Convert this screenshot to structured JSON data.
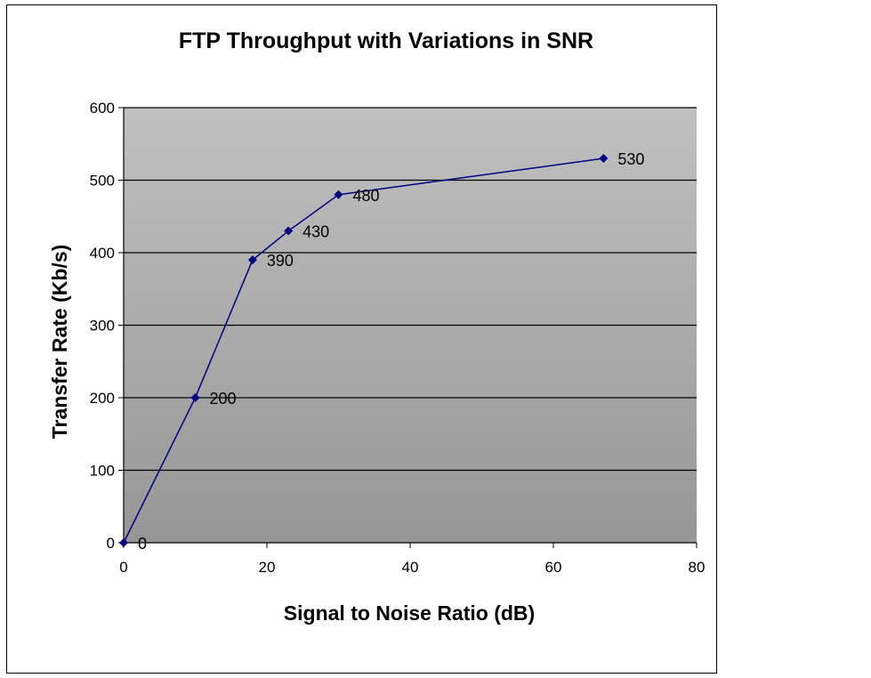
{
  "chart_data": {
    "type": "scatter",
    "title": "FTP Throughput with Variations in SNR",
    "xlabel": "Signal to Noise Ratio (dB)",
    "ylabel": "Transfer Rate (Kb/s)",
    "xlim": [
      0,
      80
    ],
    "ylim": [
      0,
      600
    ],
    "xticks": [
      0,
      20,
      40,
      60,
      80
    ],
    "yticks": [
      0,
      100,
      200,
      300,
      400,
      500,
      600
    ],
    "grid": "horizontal major gridlines",
    "legend": "none",
    "lines": "connected with straight lines",
    "series": [
      {
        "x": [
          0,
          10,
          18,
          23,
          30,
          67
        ],
        "y": [
          0,
          200,
          390,
          430,
          480,
          530
        ],
        "labels": [
          "0",
          "200",
          "390",
          "430",
          "480",
          "530"
        ]
      }
    ],
    "colors": {
      "line": "#000080",
      "marker": "#000080",
      "plot_top": "#c0c0c0",
      "plot_bottom": "#969696",
      "grid": "#000000"
    }
  }
}
